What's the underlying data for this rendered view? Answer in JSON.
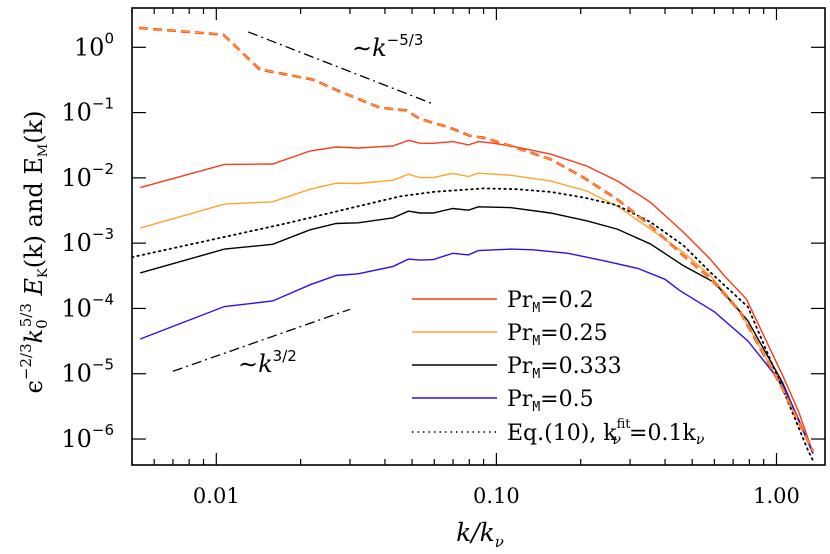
{
  "chart_data": {
    "type": "line",
    "xscale": "log",
    "yscale": "log",
    "xlim": [
      0.005,
      1.49
    ],
    "ylim": [
      4e-07,
      4
    ],
    "grid": false,
    "legend_placement": "bottom-right",
    "xlabel": {
      "main": "k/k",
      "sub": "ν"
    },
    "ylabel": {
      "parts": [
        "ϵ",
        "−2/3",
        "k",
        "0",
        "5/3",
        " E",
        "K",
        "(k)   and   E",
        "M",
        "(k)"
      ]
    },
    "xticks": [
      {
        "value": 0.01,
        "label": "0.01"
      },
      {
        "value": 0.1,
        "label": "0.10"
      },
      {
        "value": 1,
        "label": "1.00"
      }
    ],
    "yticks": [
      {
        "value": 1,
        "base": "10",
        "exp": "0"
      },
      {
        "value": 0.1,
        "base": "10",
        "exp": "−1"
      },
      {
        "value": 0.01,
        "base": "10",
        "exp": "−2"
      },
      {
        "value": 0.001,
        "base": "10",
        "exp": "−3"
      },
      {
        "value": 0.0001,
        "base": "10",
        "exp": "−4"
      },
      {
        "value": 1e-05,
        "base": "10",
        "exp": "−5"
      },
      {
        "value": 1e-06,
        "base": "10",
        "exp": "−6"
      }
    ],
    "series": [
      {
        "name": "Pr_M=0.2",
        "legend": {
          "pre": "Pr",
          "sub": "M",
          "post": "=0.2"
        },
        "color": "#fa3a18",
        "style": "solid",
        "x": [
          0.00535,
          0.0107,
          0.0159,
          0.0216,
          0.0268,
          0.0321,
          0.0428,
          0.0485,
          0.0533,
          0.0595,
          0.0699,
          0.0795,
          0.0862,
          0.0978,
          0.112,
          0.156,
          0.21,
          0.27,
          0.355,
          0.466,
          0.58,
          0.65,
          0.78,
          1.05,
          1.2,
          1.35
        ],
        "y": [
          0.0071,
          0.0161,
          0.0163,
          0.0258,
          0.0297,
          0.0287,
          0.0309,
          0.0377,
          0.034,
          0.0338,
          0.036,
          0.032,
          0.036,
          0.0338,
          0.031,
          0.0231,
          0.0152,
          0.009,
          0.00423,
          0.00146,
          0.00057,
          0.00032,
          0.00014,
          9.6e-06,
          2.6e-06,
          6.2e-07
        ]
      },
      {
        "name": "Pr_M=0.25",
        "legend": {
          "pre": "Pr",
          "sub": "M",
          "post": "=0.25"
        },
        "color": "#ffa42e",
        "style": "solid",
        "x": [
          0.00535,
          0.0107,
          0.0159,
          0.0216,
          0.0268,
          0.0321,
          0.0428,
          0.0485,
          0.0533,
          0.0595,
          0.0699,
          0.0795,
          0.0862,
          0.112,
          0.156,
          0.21,
          0.27,
          0.355,
          0.466,
          0.58,
          0.74,
          1.05,
          1.35
        ],
        "y": [
          0.0017,
          0.00397,
          0.0043,
          0.0067,
          0.0083,
          0.0082,
          0.0092,
          0.0114,
          0.0101,
          0.0101,
          0.0117,
          0.0105,
          0.0118,
          0.011,
          0.009,
          0.0063,
          0.0037,
          0.00164,
          0.00072,
          0.00032,
          9.2e-05,
          6e-06,
          6.6e-07
        ]
      },
      {
        "name": "Pr_M=0.333",
        "legend": {
          "pre": "Pr",
          "sub": "M",
          "post": "=0.333"
        },
        "color": "#000000",
        "style": "solid",
        "x": [
          0.00535,
          0.0107,
          0.0159,
          0.0216,
          0.0268,
          0.0321,
          0.0428,
          0.0485,
          0.0533,
          0.0595,
          0.0699,
          0.0795,
          0.0862,
          0.112,
          0.156,
          0.21,
          0.27,
          0.355,
          0.466,
          0.6,
          0.79,
          1.05,
          1.35
        ],
        "y": [
          0.00035,
          0.00081,
          0.00096,
          0.0016,
          0.002,
          0.00205,
          0.00245,
          0.0031,
          0.0029,
          0.0029,
          0.0034,
          0.0032,
          0.0036,
          0.0035,
          0.0029,
          0.0022,
          0.00164,
          0.00097,
          0.00045,
          0.00025,
          6.5e-05,
          7.4e-06,
          6e-07
        ]
      },
      {
        "name": "Pr_M=0.5",
        "legend": {
          "pre": "Pr",
          "sub": "M",
          "post": "=0.5"
        },
        "color": "#2b12e6",
        "style": "solid",
        "x": [
          0.00535,
          0.0107,
          0.0159,
          0.0216,
          0.0268,
          0.0321,
          0.0428,
          0.0485,
          0.0533,
          0.0595,
          0.0699,
          0.0795,
          0.0862,
          0.112,
          0.135,
          0.18,
          0.24,
          0.32,
          0.4,
          0.45,
          0.6,
          0.79,
          1.05,
          1.2,
          1.35
        ],
        "y": [
          3.4e-05,
          0.000107,
          0.00013,
          0.00023,
          0.00032,
          0.00034,
          0.00044,
          0.00057,
          0.00055,
          0.00056,
          0.0007,
          0.00066,
          0.00077,
          0.00081,
          0.00079,
          0.0007,
          0.00054,
          0.00041,
          0.00028,
          0.00019,
          8.9e-05,
          3.2e-05,
          6.9e-06,
          2e-06,
          6e-07
        ]
      },
      {
        "name": "Eq.(10)",
        "legend": {
          "pre": "Eq.(10),  k",
          "sup": "fit",
          "sub": "ν",
          "post": "=0.1k",
          "sub2": "ν"
        },
        "color": "#000000",
        "style": "dotted",
        "x": [
          0.005,
          0.0177,
          0.0452,
          0.0595,
          0.09,
          0.118,
          0.156,
          0.205,
          0.27,
          0.355,
          0.466,
          0.58,
          0.79,
          1.05,
          1.3,
          1.35
        ],
        "y": [
          0.00061,
          0.002,
          0.0052,
          0.0061,
          0.0069,
          0.0067,
          0.0061,
          0.005,
          0.0038,
          0.0021,
          0.00092,
          0.00036,
          0.000106,
          6e-06,
          6.5e-07,
          4.7e-07
        ]
      },
      {
        "name": "E_M",
        "color": "#fa3a18",
        "color2": "#ffa42e",
        "style": "dashed",
        "x": [
          0.0053,
          0.0106,
          0.0143,
          0.0169,
          0.0221,
          0.0284,
          0.0384,
          0.0478,
          0.053,
          0.068,
          0.0807,
          0.09,
          0.112,
          0.156,
          0.205,
          0.27,
          0.355,
          0.466,
          0.58,
          0.74,
          1.05,
          1.35
        ],
        "y": [
          1.98,
          1.56,
          0.457,
          0.4,
          0.32,
          0.2,
          0.119,
          0.108,
          0.081,
          0.059,
          0.044,
          0.0413,
          0.031,
          0.0193,
          0.0101,
          0.0047,
          0.00185,
          0.00064,
          0.00029,
          9e-05,
          6e-06,
          6.5e-07
        ]
      }
    ],
    "reference_lines": [
      {
        "label": {
          "pre": "∼k",
          "sup": "−5/3"
        },
        "x": [
          0.013,
          0.0588
        ],
        "y": [
          1.72,
          0.138
        ],
        "style": "dashdot"
      },
      {
        "label": {
          "pre": "∼k",
          "sup": "3/2"
        },
        "x": [
          0.007,
          0.03
        ],
        "y": [
          1.09e-05,
          9.7e-05
        ],
        "style": "dashdot"
      }
    ]
  }
}
